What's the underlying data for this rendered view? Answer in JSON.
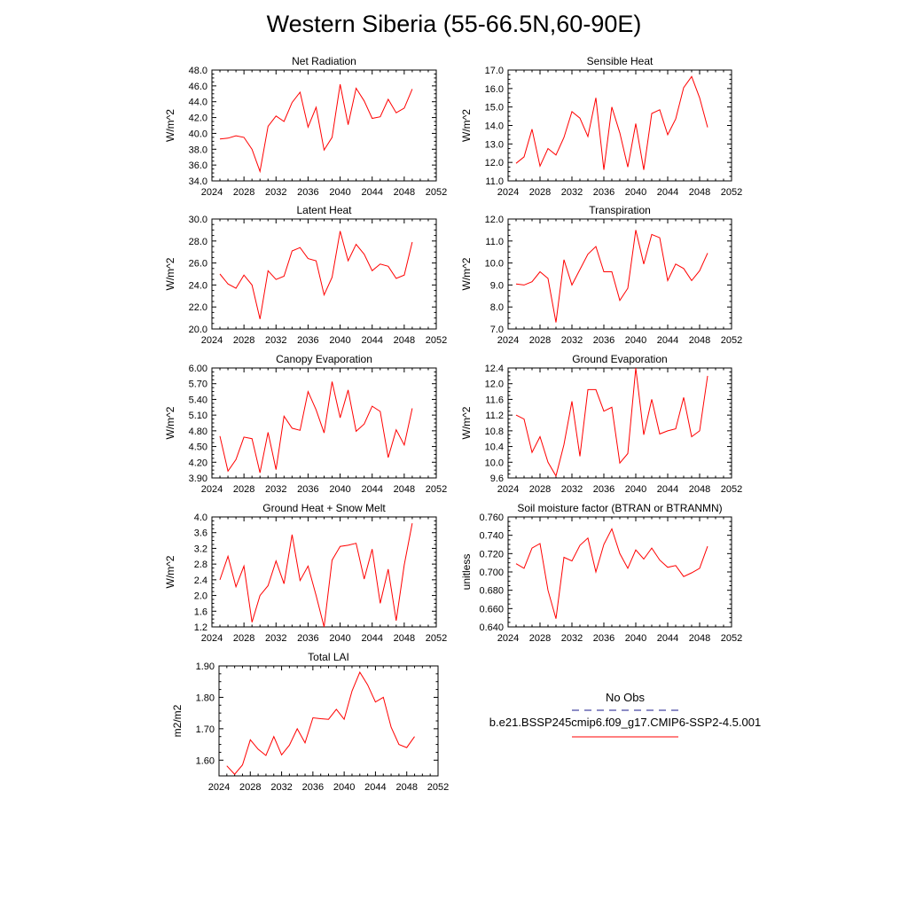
{
  "title": "Western Siberia (55-66.5N,60-90E)",
  "legend": {
    "obs_label": "No Obs",
    "obs_color": "#1a1a8c",
    "model_label": "b.e21.BSSP245cmip6.f09_g17.CMIP6-SSP2-4.5.001",
    "model_color": "#ff0000"
  },
  "chart_data": [
    {
      "type": "line",
      "title": "Net Radiation",
      "ylabel": "W/m^2",
      "xlim": [
        2024,
        2052
      ],
      "xticks": [
        "2024",
        "2028",
        "2032",
        "2036",
        "2040",
        "2044",
        "2048",
        "2052"
      ],
      "ylim": [
        34.0,
        48.0
      ],
      "yticks": [
        "34.0",
        "36.0",
        "38.0",
        "40.0",
        "42.0",
        "44.0",
        "46.0",
        "48.0"
      ],
      "x": [
        2025,
        2026,
        2027,
        2028,
        2029,
        2030,
        2031,
        2032,
        2033,
        2034,
        2035,
        2036,
        2037,
        2038,
        2039,
        2040,
        2041,
        2042,
        2043,
        2044,
        2045,
        2046,
        2047,
        2048,
        2049
      ],
      "values": [
        39.3,
        39.4,
        39.7,
        39.5,
        38.0,
        35.2,
        40.9,
        42.2,
        41.5,
        43.9,
        45.2,
        40.8,
        43.3,
        37.9,
        39.5,
        46.2,
        41.1,
        45.7,
        44.1,
        41.9,
        42.1,
        44.3,
        42.6,
        43.2,
        45.6
      ]
    },
    {
      "type": "line",
      "title": "Sensible Heat",
      "ylabel": "W/m^2",
      "xlim": [
        2024,
        2052
      ],
      "xticks": [
        "2024",
        "2028",
        "2032",
        "2036",
        "2040",
        "2044",
        "2048",
        "2052"
      ],
      "ylim": [
        11.0,
        17.0
      ],
      "yticks": [
        "11.0",
        "12.0",
        "13.0",
        "14.0",
        "15.0",
        "16.0",
        "17.0"
      ],
      "x": [
        2025,
        2026,
        2027,
        2028,
        2029,
        2030,
        2031,
        2032,
        2033,
        2034,
        2035,
        2036,
        2037,
        2038,
        2039,
        2040,
        2041,
        2042,
        2043,
        2044,
        2045,
        2046,
        2047,
        2048,
        2049
      ],
      "values": [
        11.95,
        12.3,
        13.8,
        11.8,
        12.75,
        12.4,
        13.35,
        14.75,
        14.4,
        13.4,
        15.5,
        11.6,
        15.0,
        13.6,
        11.75,
        14.1,
        11.6,
        14.65,
        14.85,
        13.5,
        14.35,
        16.05,
        16.65,
        15.5,
        13.9
      ]
    },
    {
      "type": "line",
      "title": "Latent Heat",
      "ylabel": "W/m^2",
      "xlim": [
        2024,
        2052
      ],
      "xticks": [
        "2024",
        "2028",
        "2032",
        "2036",
        "2040",
        "2044",
        "2048",
        "2052"
      ],
      "ylim": [
        20.0,
        30.0
      ],
      "yticks": [
        "20.0",
        "22.0",
        "24.0",
        "26.0",
        "28.0",
        "30.0"
      ],
      "x": [
        2025,
        2026,
        2027,
        2028,
        2029,
        2030,
        2031,
        2032,
        2033,
        2034,
        2035,
        2036,
        2037,
        2038,
        2039,
        2040,
        2041,
        2042,
        2043,
        2044,
        2045,
        2046,
        2047,
        2048,
        2049
      ],
      "values": [
        25.0,
        24.1,
        23.7,
        24.9,
        24.0,
        20.9,
        25.3,
        24.5,
        24.8,
        27.1,
        27.4,
        26.4,
        26.2,
        23.1,
        24.7,
        28.9,
        26.2,
        27.7,
        26.8,
        25.3,
        25.9,
        25.7,
        24.6,
        24.9,
        27.9
      ]
    },
    {
      "type": "line",
      "title": "Transpiration",
      "ylabel": "W/m^2",
      "xlim": [
        2024,
        2052
      ],
      "xticks": [
        "2024",
        "2028",
        "2032",
        "2036",
        "2040",
        "2044",
        "2048",
        "2052"
      ],
      "ylim": [
        7.0,
        12.0
      ],
      "yticks": [
        "7.0",
        "8.0",
        "9.0",
        "10.0",
        "11.0",
        "12.0"
      ],
      "x": [
        2025,
        2026,
        2027,
        2028,
        2029,
        2030,
        2031,
        2032,
        2033,
        2034,
        2035,
        2036,
        2037,
        2038,
        2039,
        2040,
        2041,
        2042,
        2043,
        2044,
        2045,
        2046,
        2047,
        2048,
        2049
      ],
      "values": [
        9.05,
        9.0,
        9.15,
        9.6,
        9.3,
        7.3,
        10.15,
        9.0,
        9.7,
        10.4,
        10.75,
        9.6,
        9.6,
        8.3,
        8.85,
        11.5,
        9.95,
        11.3,
        11.15,
        9.2,
        9.95,
        9.75,
        9.2,
        9.65,
        10.45
      ]
    },
    {
      "type": "line",
      "title": "Canopy Evaporation",
      "ylabel": "W/m^2",
      "xlim": [
        2024,
        2052
      ],
      "xticks": [
        "2024",
        "2028",
        "2032",
        "2036",
        "2040",
        "2044",
        "2048",
        "2052"
      ],
      "ylim": [
        3.9,
        6.0
      ],
      "yticks": [
        "3.90",
        "4.20",
        "4.50",
        "4.80",
        "5.10",
        "5.40",
        "5.70",
        "6.00"
      ],
      "x": [
        2025,
        2026,
        2027,
        2028,
        2029,
        2030,
        2031,
        2032,
        2033,
        2034,
        2035,
        2036,
        2037,
        2038,
        2039,
        2040,
        2041,
        2042,
        2043,
        2044,
        2045,
        2046,
        2047,
        2048,
        2049
      ],
      "values": [
        4.7,
        4.03,
        4.25,
        4.68,
        4.65,
        4.0,
        4.77,
        4.06,
        5.08,
        4.85,
        4.81,
        5.55,
        5.2,
        4.76,
        5.74,
        5.05,
        5.58,
        4.79,
        4.93,
        5.27,
        5.17,
        4.29,
        4.82,
        4.53,
        5.23
      ]
    },
    {
      "type": "line",
      "title": "Ground Evaporation",
      "ylabel": "W/m^2",
      "xlim": [
        2024,
        2052
      ],
      "xticks": [
        "2024",
        "2028",
        "2032",
        "2036",
        "2040",
        "2044",
        "2048",
        "2052"
      ],
      "ylim": [
        9.6,
        12.4
      ],
      "yticks": [
        "9.6",
        "10.0",
        "10.4",
        "10.8",
        "11.2",
        "11.6",
        "12.0",
        "12.4"
      ],
      "x": [
        2025,
        2026,
        2027,
        2028,
        2029,
        2030,
        2031,
        2032,
        2033,
        2034,
        2035,
        2036,
        2037,
        2038,
        2039,
        2040,
        2041,
        2042,
        2043,
        2044,
        2045,
        2046,
        2047,
        2048,
        2049
      ],
      "values": [
        11.2,
        11.1,
        10.25,
        10.65,
        10.0,
        9.65,
        10.45,
        11.55,
        10.15,
        11.85,
        11.85,
        11.3,
        11.4,
        9.98,
        10.22,
        12.4,
        10.7,
        11.6,
        10.72,
        10.8,
        10.85,
        11.65,
        10.65,
        10.8,
        12.2
      ]
    },
    {
      "type": "line",
      "title": "Ground Heat + Snow Melt",
      "ylabel": "W/m^2",
      "xlim": [
        2024,
        2052
      ],
      "xticks": [
        "2024",
        "2028",
        "2032",
        "2036",
        "2040",
        "2044",
        "2048",
        "2052"
      ],
      "ylim": [
        1.2,
        4.0
      ],
      "yticks": [
        "1.2",
        "1.6",
        "2.0",
        "2.4",
        "2.8",
        "3.2",
        "3.6",
        "4.0"
      ],
      "x": [
        2025,
        2026,
        2027,
        2028,
        2029,
        2030,
        2031,
        2032,
        2033,
        2034,
        2035,
        2036,
        2037,
        2038,
        2039,
        2040,
        2041,
        2042,
        2043,
        2044,
        2045,
        2046,
        2047,
        2048,
        2049
      ],
      "values": [
        2.4,
        3.0,
        2.22,
        2.75,
        1.32,
        2.0,
        2.25,
        2.88,
        2.3,
        3.55,
        2.38,
        2.75,
        2.0,
        1.2,
        2.9,
        3.25,
        3.28,
        3.33,
        2.42,
        3.18,
        1.8,
        2.67,
        1.36,
        2.78,
        3.84
      ]
    },
    {
      "type": "line",
      "title": "Soil moisture factor (BTRAN or BTRANMN)",
      "ylabel": "unitless",
      "xlim": [
        2024,
        2052
      ],
      "xticks": [
        "2024",
        "2028",
        "2032",
        "2036",
        "2040",
        "2044",
        "2048",
        "2052"
      ],
      "ylim": [
        0.64,
        0.76
      ],
      "yticks": [
        "0.640",
        "0.660",
        "0.680",
        "0.700",
        "0.720",
        "0.740",
        "0.760"
      ],
      "x": [
        2025,
        2026,
        2027,
        2028,
        2029,
        2030,
        2031,
        2032,
        2033,
        2034,
        2035,
        2036,
        2037,
        2038,
        2039,
        2040,
        2041,
        2042,
        2043,
        2044,
        2045,
        2046,
        2047,
        2048,
        2049
      ],
      "values": [
        0.709,
        0.704,
        0.726,
        0.731,
        0.68,
        0.649,
        0.716,
        0.712,
        0.729,
        0.737,
        0.7,
        0.73,
        0.747,
        0.72,
        0.704,
        0.724,
        0.714,
        0.726,
        0.713,
        0.705,
        0.707,
        0.695,
        0.699,
        0.704,
        0.728
      ]
    },
    {
      "type": "line",
      "title": "Total LAI",
      "ylabel": "m2/m2",
      "xlim": [
        2024,
        2052
      ],
      "xticks": [
        "2024",
        "2028",
        "2032",
        "2036",
        "2040",
        "2044",
        "2048",
        "2052"
      ],
      "ylim": [
        1.55,
        1.9
      ],
      "yticks": [
        "1.60",
        "1.70",
        "1.80",
        "1.90"
      ],
      "ytick_values": [
        1.6,
        1.7,
        1.8,
        1.9
      ],
      "x": [
        2025,
        2026,
        2027,
        2028,
        2029,
        2030,
        2031,
        2032,
        2033,
        2034,
        2035,
        2036,
        2037,
        2038,
        2039,
        2040,
        2041,
        2042,
        2043,
        2044,
        2045,
        2046,
        2047,
        2048,
        2049
      ],
      "values": [
        1.582,
        1.555,
        1.585,
        1.665,
        1.635,
        1.615,
        1.675,
        1.617,
        1.648,
        1.7,
        1.655,
        1.735,
        1.732,
        1.73,
        1.762,
        1.73,
        1.82,
        1.88,
        1.84,
        1.785,
        1.8,
        1.705,
        1.65,
        1.64,
        1.675
      ]
    }
  ]
}
